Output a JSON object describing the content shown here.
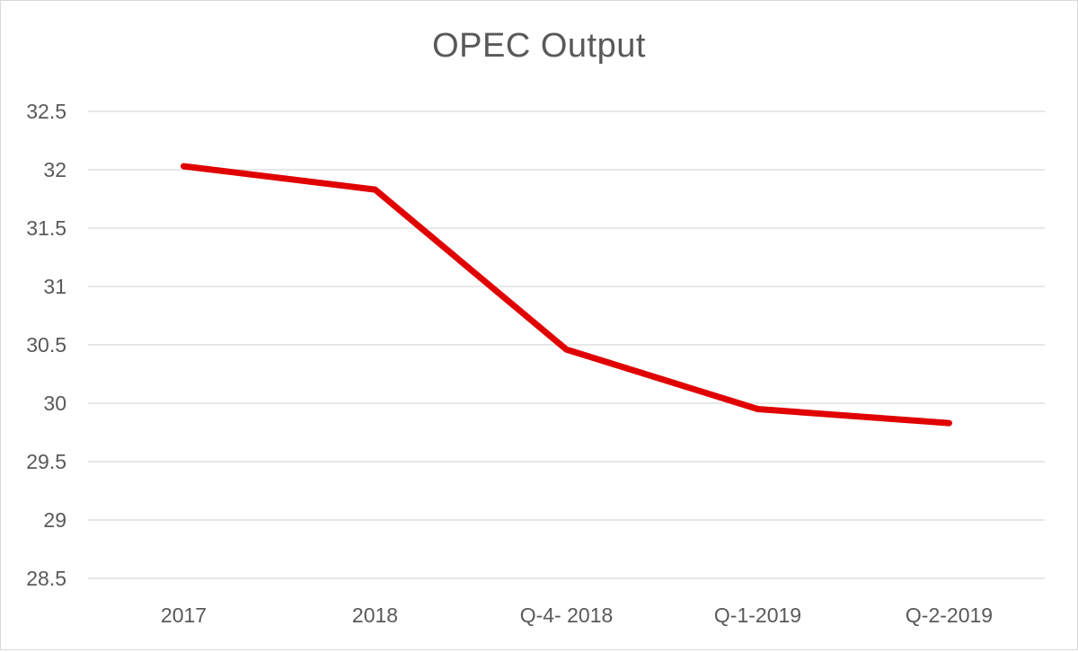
{
  "chart_data": {
    "type": "line",
    "title": "OPEC Output",
    "xlabel": "",
    "ylabel": "",
    "categories": [
      "2017",
      "2018",
      "Q-4- 2018",
      "Q-1-2019",
      "Q-2-2019"
    ],
    "series": [
      {
        "values": [
          32.03,
          31.83,
          30.46,
          29.95,
          29.83
        ],
        "color": "#e00000"
      }
    ],
    "ylim": [
      28.5,
      32.5
    ],
    "yticks": [
      "32.5",
      "32",
      "31.5",
      "31",
      "30.5",
      "30",
      "29.5",
      "29",
      "28.5"
    ],
    "grid": true,
    "legend": "none"
  }
}
